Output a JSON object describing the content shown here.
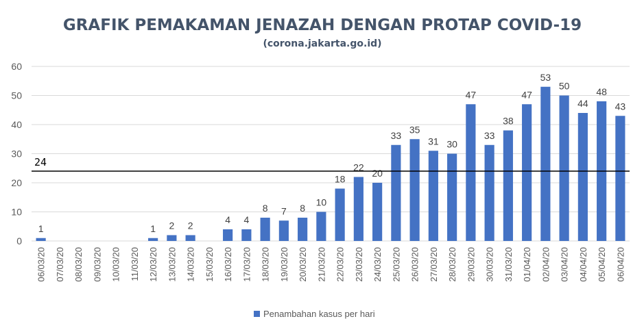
{
  "chart_data": {
    "type": "bar",
    "title": "GRAFIK PEMAKAMAN JENAZAH DENGAN PROTAP COVID-19",
    "subtitle": "(corona.jakarta.go.id)",
    "xlabel": "",
    "ylabel": "",
    "ylim": [
      0,
      60
    ],
    "yticks": [
      "0",
      "10",
      "20",
      "30",
      "40",
      "50",
      "60"
    ],
    "grid": true,
    "legend_position": "bottom",
    "categories": [
      "06/03/20",
      "07/03/20",
      "08/03/20",
      "09/03/20",
      "10/03/20",
      "11/03/20",
      "12/03/20",
      "13/03/20",
      "14/03/20",
      "15/03/20",
      "16/03/20",
      "17/03/20",
      "18/03/20",
      "19/03/20",
      "20/03/20",
      "21/03/20",
      "22/03/20",
      "23/03/20",
      "24/03/20",
      "25/03/20",
      "26/03/20",
      "27/03/20",
      "28/03/20",
      "29/03/20",
      "30/03/20",
      "31/03/20",
      "01/04/20",
      "02/04/20",
      "03/04/20",
      "04/04/20",
      "05/04/20",
      "06/04/20"
    ],
    "series": [
      {
        "name": "Penambahan kasus per hari",
        "color": "#4472c4",
        "values": [
          1,
          0,
          0,
          0,
          0,
          0,
          1,
          2,
          2,
          0,
          4,
          4,
          8,
          7,
          8,
          10,
          18,
          22,
          20,
          33,
          35,
          31,
          30,
          47,
          33,
          38,
          47,
          53,
          50,
          44,
          48,
          43
        ],
        "data_labels": [
          "1",
          "",
          "",
          "",
          "",
          "",
          "1",
          "2",
          "2",
          "",
          "4",
          "4",
          "8",
          "7",
          "8",
          "10",
          "18",
          "22",
          "20",
          "33",
          "35",
          "31",
          "30",
          "47",
          "33",
          "38",
          "47",
          "53",
          "50",
          "44",
          "48",
          "43"
        ]
      }
    ],
    "reference_line": {
      "value": 24,
      "label": "24",
      "color": "#000000"
    }
  }
}
